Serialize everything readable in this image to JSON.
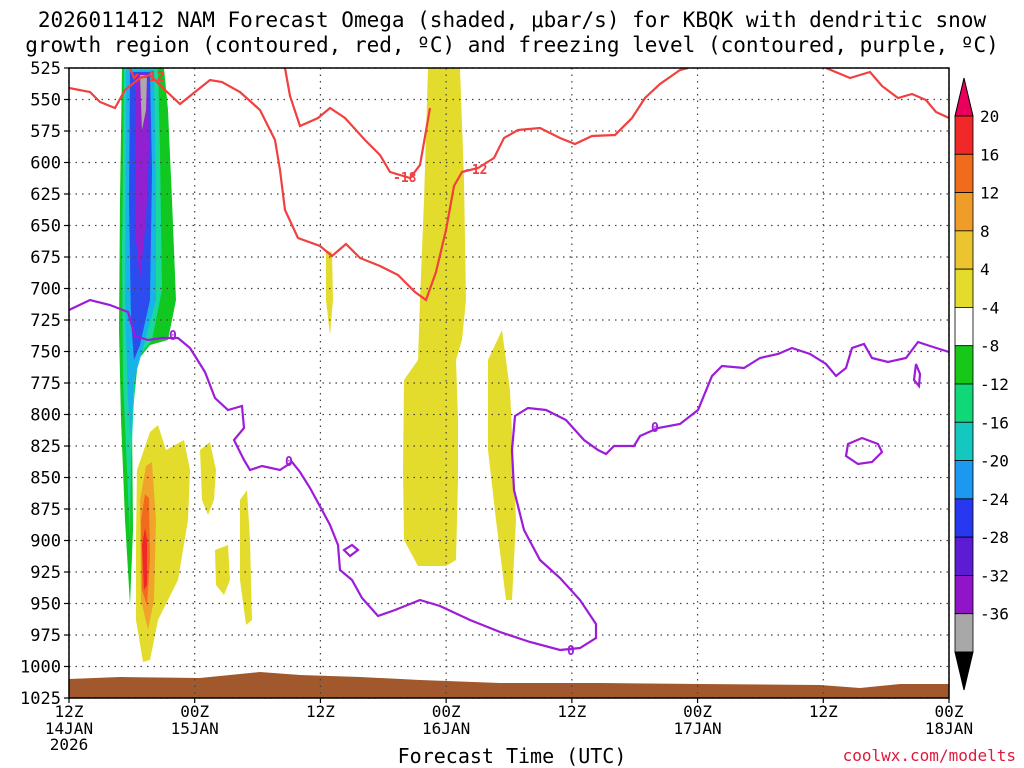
{
  "title_line1": "2026011412 NAM Forecast Omega (shaded, μbar/s) for KBQK with dendritic snow",
  "title_line2": "growth region (contoured, red, ºC) and freezing level (contoured, purple, ºC)",
  "xaxis_title": "Forecast Time (UTC)",
  "credit": "coolwx.com/modelts",
  "chart_data": {
    "type": "heatmap",
    "x_hours": [
      0,
      84
    ],
    "y_pressure_hpa": [
      1025,
      525
    ],
    "y_ticks": [
      "525",
      "550",
      "575",
      "600",
      "625",
      "650",
      "675",
      "700",
      "725",
      "750",
      "775",
      "800",
      "825",
      "850",
      "875",
      "900",
      "925",
      "950",
      "975",
      "1000",
      "1025"
    ],
    "x_ticks": [
      {
        "hour": 0,
        "top": "12Z",
        "mid": "14JAN",
        "bot": "2026"
      },
      {
        "hour": 12,
        "top": "00Z",
        "mid": "15JAN",
        "bot": ""
      },
      {
        "hour": 24,
        "top": "12Z",
        "mid": "",
        "bot": ""
      },
      {
        "hour": 36,
        "top": "00Z",
        "mid": "16JAN",
        "bot": ""
      },
      {
        "hour": 48,
        "top": "12Z",
        "mid": "",
        "bot": ""
      },
      {
        "hour": 60,
        "top": "00Z",
        "mid": "17JAN",
        "bot": ""
      },
      {
        "hour": 72,
        "top": "12Z",
        "mid": "",
        "bot": ""
      },
      {
        "hour": 84,
        "top": "00Z",
        "mid": "18JAN",
        "bot": ""
      }
    ],
    "colorbar": {
      "labels": [
        "20",
        "16",
        "12",
        "8",
        "4",
        "-4",
        "-8",
        "-12",
        "-16",
        "-20",
        "-24",
        "-28",
        "-32",
        "-36"
      ],
      "colors": [
        "#e8005c",
        "#f02828",
        "#f06c1c",
        "#f09c28",
        "#ecc430",
        "#e4dc2c",
        "#ffffff",
        "#18c818",
        "#10d878",
        "#14c8c0",
        "#1c98f0",
        "#2838f0",
        "#5c1cd4",
        "#9014c8",
        "#a8a8a8",
        "#000000"
      ]
    },
    "contours": [
      {
        "name": "dgz -12 C",
        "color": "#f04040",
        "label": "-12"
      },
      {
        "name": "dgz -18 C",
        "color": "#f04040",
        "label": "-18"
      },
      {
        "name": "freezing level 0 C",
        "color": "#9c1cd8",
        "label": "0"
      }
    ]
  }
}
